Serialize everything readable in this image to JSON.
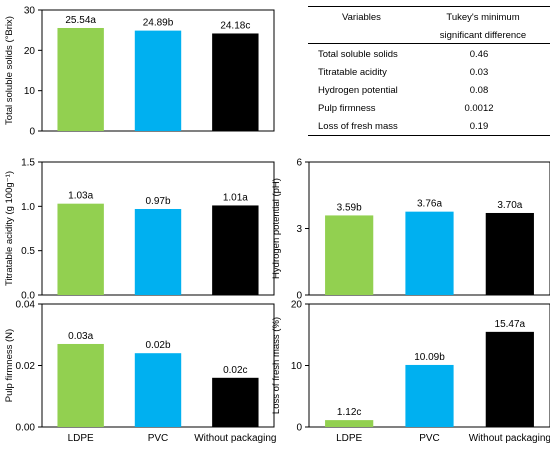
{
  "chart_data": [
    {
      "type": "bar",
      "categories": [
        "LDPE",
        "PVC",
        "Without packaging"
      ],
      "ylabel": "Total soluble solids (°Brix)",
      "ylim": [
        0,
        30
      ],
      "yticks": [
        "0",
        "10",
        "20",
        "30"
      ],
      "values": [
        25.54,
        24.89,
        24.18
      ],
      "data_labels": [
        "25.54a",
        "24.89b",
        "24.18c"
      ],
      "show_category_labels": false
    },
    {
      "type": "bar",
      "categories": [
        "LDPE",
        "PVC",
        "Without packaging"
      ],
      "ylabel": "Titratable acidity (g 100g⁻¹)",
      "ylim": [
        0,
        1.5
      ],
      "yticks": [
        "0.0",
        "0.5",
        "1.0",
        "1.5"
      ],
      "values": [
        1.03,
        0.97,
        1.01
      ],
      "data_labels": [
        "1.03a",
        "0.97b",
        "1.01a"
      ],
      "show_category_labels": false
    },
    {
      "type": "bar",
      "categories": [
        "LDPE",
        "PVC",
        "Without packaging"
      ],
      "ylabel": "Hydrogen potential (pH)",
      "ylim": [
        0,
        6
      ],
      "yticks": [
        "0",
        "3",
        "6"
      ],
      "values": [
        3.59,
        3.76,
        3.7
      ],
      "data_labels": [
        "3.59b",
        "3.76a",
        "3.70a"
      ],
      "show_category_labels": false
    },
    {
      "type": "bar",
      "categories": [
        "LDPE",
        "PVC",
        "Without packaging"
      ],
      "ylabel": "Pulp firmness (N)",
      "ylim": [
        0,
        0.04
      ],
      "yticks": [
        "0.00",
        "0.02",
        "0.04"
      ],
      "values": [
        0.027,
        0.024,
        0.016
      ],
      "data_labels": [
        "0.03a",
        "0.02b",
        "0.02c"
      ],
      "show_category_labels": true
    },
    {
      "type": "bar",
      "categories": [
        "LDPE",
        "PVC",
        "Without packaging"
      ],
      "ylabel": "Loss of fresh mass (%)",
      "ylim": [
        0,
        20
      ],
      "yticks": [
        "0",
        "10",
        "20"
      ],
      "values": [
        1.12,
        10.09,
        15.47
      ],
      "data_labels": [
        "1.12c",
        "10.09b",
        "15.47a"
      ],
      "show_category_labels": true
    }
  ],
  "colors": {
    "LDPE": "#92d050",
    "PVC": "#00b0f0",
    "Without packaging": "#000000"
  },
  "table": {
    "header_variables": "Variables",
    "header_tukey_line1": "Tukey's minimum",
    "header_tukey_line2": "significant difference",
    "rows": [
      {
        "variable": "Total soluble solids",
        "value": "0.46"
      },
      {
        "variable": "Titratable acidity",
        "value": "0.03"
      },
      {
        "variable": "Hydrogen potential",
        "value": "0.08"
      },
      {
        "variable": "Pulp firmness",
        "value": "0.0012"
      },
      {
        "variable": "Loss of fresh mass",
        "value": "0.19"
      }
    ]
  }
}
